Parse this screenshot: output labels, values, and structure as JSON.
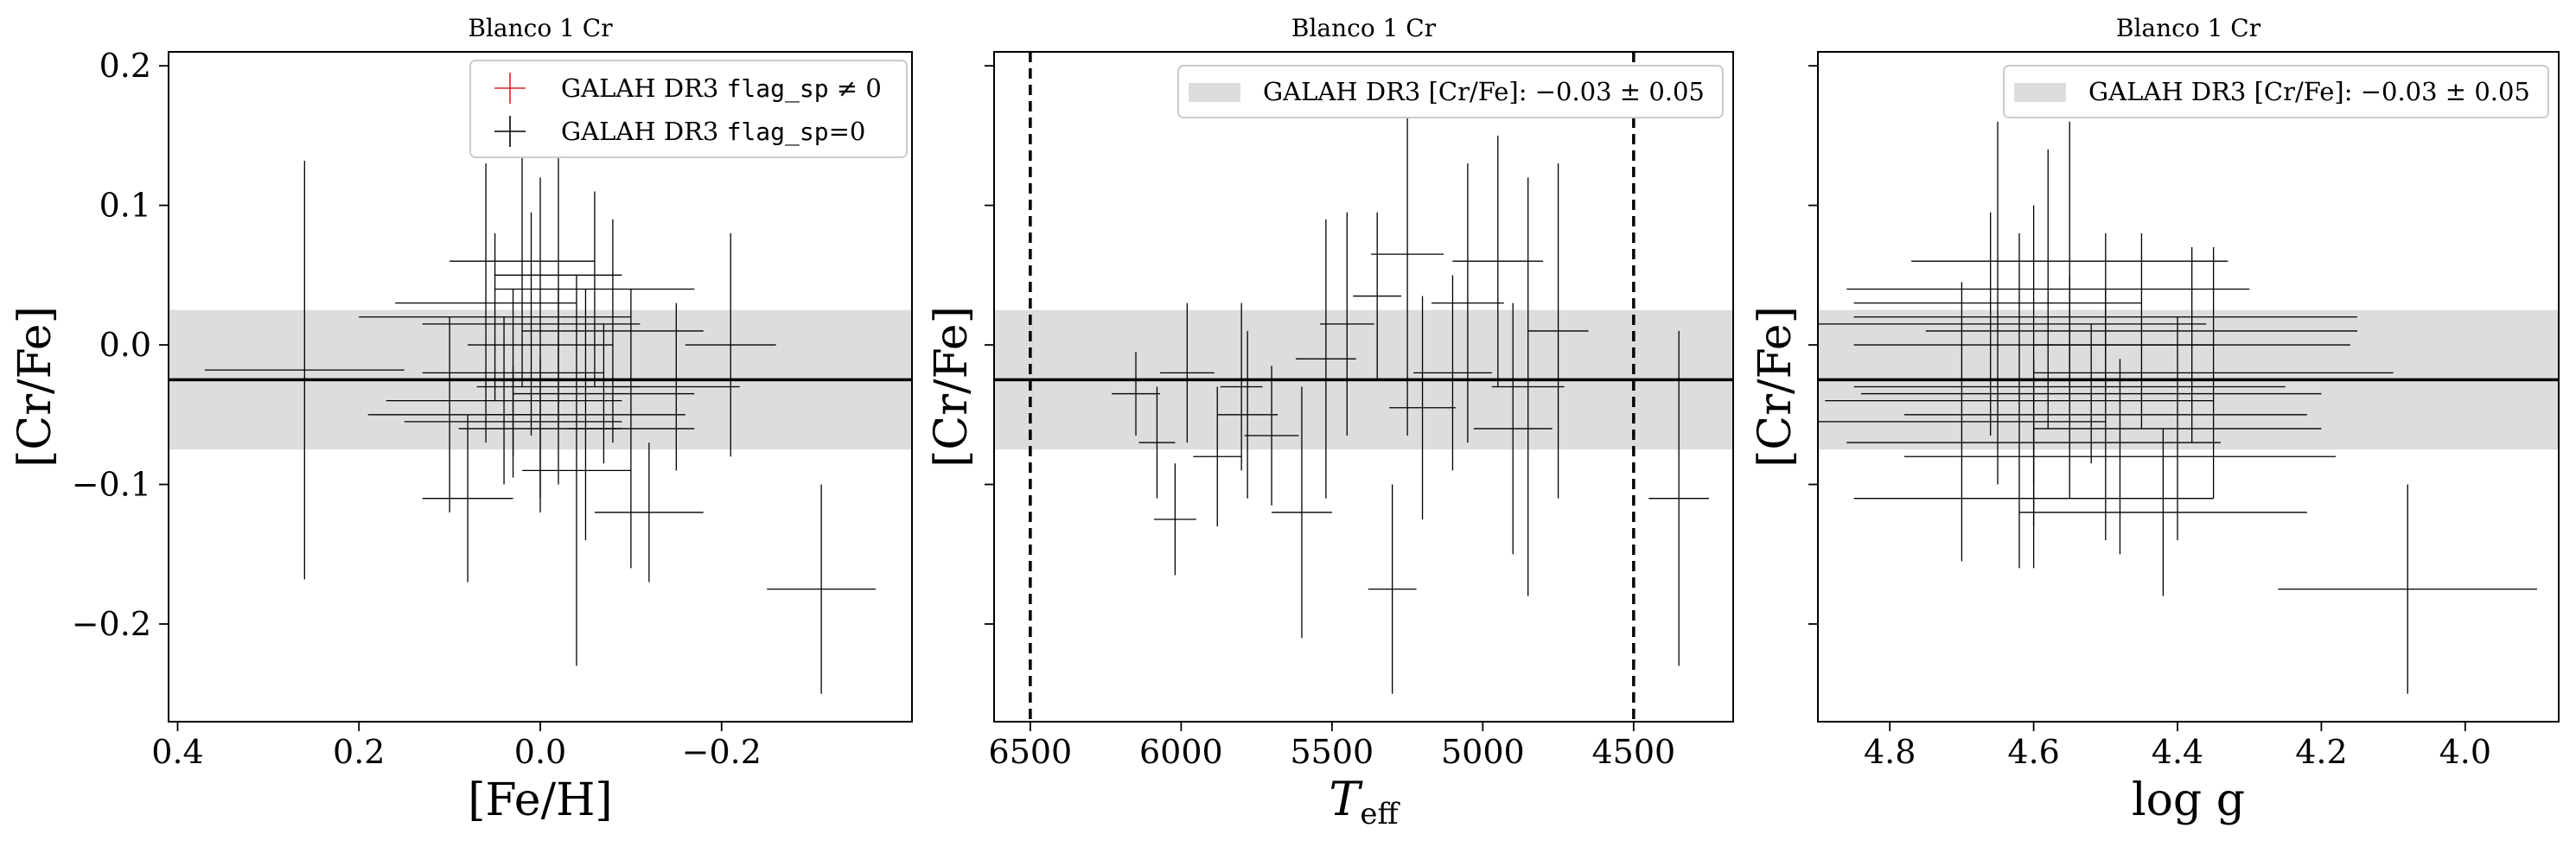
{
  "chart_data": [
    {
      "type": "scatter",
      "title": "Blanco 1 Cr",
      "xlabel": "[Fe/H]",
      "ylabel": "[Cr/Fe]",
      "xlim": [
        0.41,
        -0.41
      ],
      "ylim": [
        -0.27,
        0.21
      ],
      "x_inverted": true,
      "xticks": [
        0.4,
        0.2,
        0.0,
        -0.2
      ],
      "xtick_labels": [
        "0.4",
        "0.2",
        "0.0",
        "−0.2"
      ],
      "yticks": [
        -0.2,
        -0.1,
        0.0,
        0.1,
        0.2
      ],
      "ytick_labels": [
        "−0.2",
        "−0.1",
        "0.0",
        "0.1",
        "0.2"
      ],
      "show_ytick_labels": true,
      "band": {
        "center": -0.025,
        "halfwidth": 0.05
      },
      "legend": {
        "placement": "top-right",
        "entries": [
          {
            "marker": "cross",
            "color": "#d62728",
            "prefix": "GALAH DR3 ",
            "code": "flag_sp",
            "suffix": " ≠ 0"
          },
          {
            "marker": "cross",
            "color": "#000000",
            "prefix": "GALAH DR3 ",
            "code": "flag_sp",
            "suffix": "=0"
          }
        ]
      },
      "points": [
        {
          "x": 0.26,
          "y": -0.018,
          "xerr": 0.11,
          "yerr": 0.15
        },
        {
          "x": -0.31,
          "y": -0.175,
          "xerr": 0.06,
          "yerr": 0.075
        },
        {
          "x": 0.03,
          "y": -0.02,
          "xerr": 0.1,
          "yerr": 0.06
        },
        {
          "x": 0.01,
          "y": 0.015,
          "xerr": 0.12,
          "yerr": 0.08
        },
        {
          "x": -0.02,
          "y": -0.03,
          "xerr": 0.09,
          "yerr": 0.07
        },
        {
          "x": 0.06,
          "y": 0.03,
          "xerr": 0.1,
          "yerr": 0.1
        },
        {
          "x": -0.05,
          "y": -0.05,
          "xerr": 0.11,
          "yerr": 0.09
        },
        {
          "x": 0.0,
          "y": 0.0,
          "xerr": 0.08,
          "yerr": 0.12
        },
        {
          "x": 0.04,
          "y": -0.04,
          "xerr": 0.13,
          "yerr": 0.06
        },
        {
          "x": -0.08,
          "y": 0.01,
          "xerr": 0.1,
          "yerr": 0.08
        },
        {
          "x": -0.21,
          "y": 0.0,
          "xerr": 0.05,
          "yerr": 0.08
        },
        {
          "x": 0.02,
          "y": 0.06,
          "xerr": 0.08,
          "yerr": 0.09
        },
        {
          "x": -0.1,
          "y": -0.06,
          "xerr": 0.07,
          "yerr": 0.1
        },
        {
          "x": 0.08,
          "y": -0.11,
          "xerr": 0.05,
          "yerr": 0.06
        },
        {
          "x": -0.12,
          "y": -0.12,
          "xerr": 0.06,
          "yerr": 0.05
        },
        {
          "x": -0.04,
          "y": -0.09,
          "xerr": 0.06,
          "yerr": 0.14
        },
        {
          "x": 0.05,
          "y": 0.02,
          "xerr": 0.15,
          "yerr": 0.06
        },
        {
          "x": 0.1,
          "y": -0.05,
          "xerr": 0.09,
          "yerr": 0.07
        },
        {
          "x": -0.02,
          "y": 0.05,
          "xerr": 0.07,
          "yerr": 0.11
        },
        {
          "x": 0.0,
          "y": -0.06,
          "xerr": 0.09,
          "yerr": 0.05
        },
        {
          "x": -0.07,
          "y": -0.035,
          "xerr": 0.1,
          "yerr": 0.05
        },
        {
          "x": 0.03,
          "y": -0.055,
          "xerr": 0.12,
          "yerr": 0.04
        },
        {
          "x": -0.15,
          "y": -0.03,
          "xerr": 0.07,
          "yerr": 0.06
        },
        {
          "x": -0.06,
          "y": 0.04,
          "xerr": 0.11,
          "yerr": 0.07
        }
      ]
    },
    {
      "type": "scatter",
      "title": "Blanco 1 Cr",
      "xlabel": "T_eff",
      "ylabel": "[Cr/Fe]",
      "xlim": [
        6620,
        4170
      ],
      "ylim": [
        -0.27,
        0.21
      ],
      "x_inverted": true,
      "xticks": [
        6500,
        6000,
        5500,
        5000,
        4500
      ],
      "xtick_labels": [
        "6500",
        "6000",
        "5500",
        "5000",
        "4500"
      ],
      "yticks": [
        -0.2,
        -0.1,
        0.0,
        0.1,
        0.2
      ],
      "ytick_labels": [
        "",
        "",
        "",
        "",
        ""
      ],
      "show_ytick_labels": false,
      "vlines": [
        6500,
        4500
      ],
      "band": {
        "center": -0.025,
        "halfwidth": 0.05
      },
      "legend": {
        "placement": "top-right",
        "entries": [
          {
            "marker": "patch",
            "color": "#dddddd",
            "text": "GALAH DR3 [Cr/Fe]: −0.03 ± 0.05"
          }
        ]
      },
      "points": [
        {
          "x": 6150,
          "y": -0.035,
          "xerr": 80,
          "yerr": 0.03
        },
        {
          "x": 6020,
          "y": -0.125,
          "xerr": 70,
          "yerr": 0.04
        },
        {
          "x": 5980,
          "y": -0.02,
          "xerr": 90,
          "yerr": 0.05
        },
        {
          "x": 5780,
          "y": -0.05,
          "xerr": 100,
          "yerr": 0.06
        },
        {
          "x": 5600,
          "y": -0.12,
          "xerr": 100,
          "yerr": 0.09
        },
        {
          "x": 5450,
          "y": 0.015,
          "xerr": 90,
          "yerr": 0.08
        },
        {
          "x": 5300,
          "y": -0.175,
          "xerr": 80,
          "yerr": 0.075
        },
        {
          "x": 5250,
          "y": 0.065,
          "xerr": 120,
          "yerr": 0.13
        },
        {
          "x": 5100,
          "y": -0.02,
          "xerr": 130,
          "yerr": 0.07
        },
        {
          "x": 4950,
          "y": 0.06,
          "xerr": 150,
          "yerr": 0.09
        },
        {
          "x": 4850,
          "y": -0.03,
          "xerr": 120,
          "yerr": 0.15
        },
        {
          "x": 4750,
          "y": 0.01,
          "xerr": 100,
          "yerr": 0.12
        },
        {
          "x": 4350,
          "y": -0.11,
          "xerr": 100,
          "yerr": 0.12
        },
        {
          "x": 5700,
          "y": -0.065,
          "xerr": 90,
          "yerr": 0.05
        },
        {
          "x": 5520,
          "y": -0.01,
          "xerr": 100,
          "yerr": 0.1
        },
        {
          "x": 5350,
          "y": 0.035,
          "xerr": 80,
          "yerr": 0.06
        },
        {
          "x": 5200,
          "y": -0.045,
          "xerr": 110,
          "yerr": 0.08
        },
        {
          "x": 5050,
          "y": 0.03,
          "xerr": 120,
          "yerr": 0.1
        },
        {
          "x": 4900,
          "y": -0.06,
          "xerr": 130,
          "yerr": 0.09
        },
        {
          "x": 5880,
          "y": -0.08,
          "xerr": 80,
          "yerr": 0.05
        },
        {
          "x": 6080,
          "y": -0.07,
          "xerr": 60,
          "yerr": 0.04
        },
        {
          "x": 5800,
          "y": -0.03,
          "xerr": 70,
          "yerr": 0.06
        }
      ]
    },
    {
      "type": "scatter",
      "title": "Blanco 1 Cr",
      "xlabel": "log g",
      "ylabel": "[Cr/Fe]",
      "xlim": [
        4.9,
        3.87
      ],
      "ylim": [
        -0.27,
        0.21
      ],
      "x_inverted": true,
      "xticks": [
        4.8,
        4.6,
        4.4,
        4.2,
        4.0
      ],
      "xtick_labels": [
        "4.8",
        "4.6",
        "4.4",
        "4.2",
        "4.0"
      ],
      "yticks": [
        -0.2,
        -0.1,
        0.0,
        0.1,
        0.2
      ],
      "ytick_labels": [
        "",
        "",
        "",
        "",
        ""
      ],
      "show_ytick_labels": false,
      "band": {
        "center": -0.025,
        "halfwidth": 0.05
      },
      "legend": {
        "placement": "top-right",
        "entries": [
          {
            "marker": "patch",
            "color": "#dddddd",
            "text": "GALAH DR3 [Cr/Fe]: −0.03 ± 0.05"
          }
        ]
      },
      "points": [
        {
          "x": 4.08,
          "y": -0.175,
          "xerr": 0.18,
          "yerr": 0.075
        },
        {
          "x": 4.6,
          "y": 0.0,
          "xerr": 0.25,
          "yerr": 0.1
        },
        {
          "x": 4.55,
          "y": -0.03,
          "xerr": 0.3,
          "yerr": 0.08
        },
        {
          "x": 4.65,
          "y": 0.03,
          "xerr": 0.2,
          "yerr": 0.13
        },
        {
          "x": 4.5,
          "y": -0.05,
          "xerr": 0.28,
          "yerr": 0.09
        },
        {
          "x": 4.6,
          "y": -0.11,
          "xerr": 0.25,
          "yerr": 0.05
        },
        {
          "x": 4.45,
          "y": 0.01,
          "xerr": 0.3,
          "yerr": 0.07
        },
        {
          "x": 4.55,
          "y": 0.06,
          "xerr": 0.22,
          "yerr": 0.1
        },
        {
          "x": 4.4,
          "y": -0.06,
          "xerr": 0.2,
          "yerr": 0.08
        },
        {
          "x": 4.62,
          "y": -0.04,
          "xerr": 0.27,
          "yerr": 0.12
        },
        {
          "x": 4.5,
          "y": 0.02,
          "xerr": 0.35,
          "yerr": 0.06
        },
        {
          "x": 4.35,
          "y": -0.02,
          "xerr": 0.25,
          "yerr": 0.09
        },
        {
          "x": 4.7,
          "y": -0.055,
          "xerr": 0.2,
          "yerr": 0.1
        },
        {
          "x": 4.48,
          "y": -0.08,
          "xerr": 0.3,
          "yerr": 0.07
        },
        {
          "x": 4.58,
          "y": 0.04,
          "xerr": 0.28,
          "yerr": 0.1
        },
        {
          "x": 4.42,
          "y": -0.12,
          "xerr": 0.2,
          "yerr": 0.06
        },
        {
          "x": 4.66,
          "y": 0.015,
          "xerr": 0.3,
          "yerr": 0.08
        },
        {
          "x": 4.52,
          "y": -0.035,
          "xerr": 0.32,
          "yerr": 0.05
        },
        {
          "x": 4.38,
          "y": 0.0,
          "xerr": 0.22,
          "yerr": 0.07
        },
        {
          "x": 4.6,
          "y": -0.07,
          "xerr": 0.26,
          "yerr": 0.06
        }
      ]
    }
  ]
}
